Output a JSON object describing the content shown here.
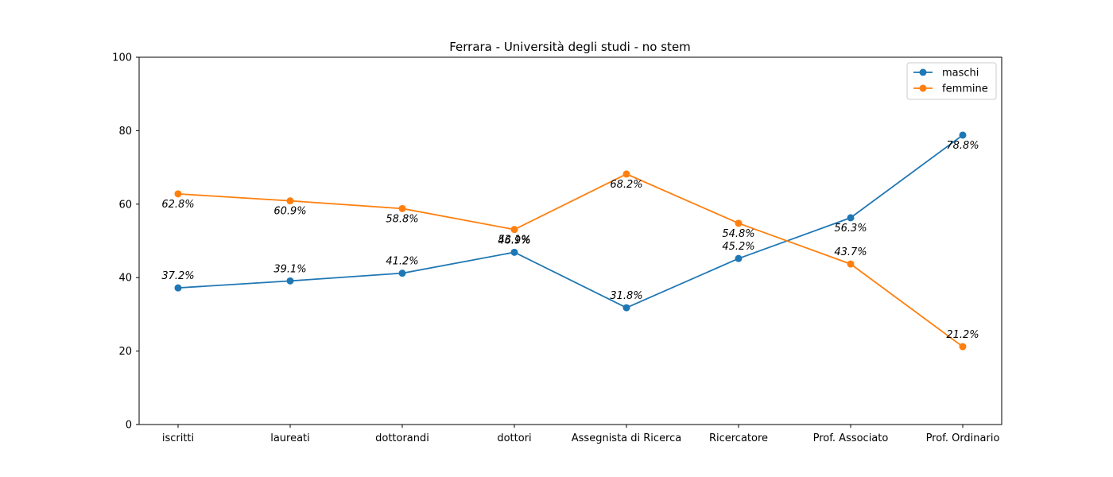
{
  "chart_data": {
    "type": "line",
    "title": "Ferrara - Università degli studi - no stem",
    "xlabel": "",
    "ylabel": "",
    "categories": [
      "iscritti",
      "laureati",
      "dottorandi",
      "dottori",
      "Assegnista di Ricerca",
      "Ricercatore",
      "Prof. Associato",
      "Prof. Ordinario"
    ],
    "ylim": [
      0,
      100
    ],
    "yticks": [
      0,
      20,
      40,
      60,
      80,
      100
    ],
    "grid": false,
    "legend_position": "top-right",
    "series": [
      {
        "name": "maschi",
        "color": "#1f77b4",
        "values": [
          37.2,
          39.1,
          41.2,
          46.9,
          31.8,
          45.2,
          56.3,
          78.8
        ],
        "labels": [
          "37.2%",
          "39.1%",
          "41.2%",
          "46.9%",
          "31.8%",
          "45.2%",
          "56.3%",
          "78.8%"
        ]
      },
      {
        "name": "femmine",
        "color": "#ff7f0e",
        "values": [
          62.8,
          60.9,
          58.8,
          53.1,
          68.2,
          54.8,
          43.7,
          21.2
        ],
        "labels": [
          "62.8%",
          "60.9%",
          "58.8%",
          "53.1%",
          "68.2%",
          "54.8%",
          "43.7%",
          "21.2%"
        ]
      }
    ]
  }
}
